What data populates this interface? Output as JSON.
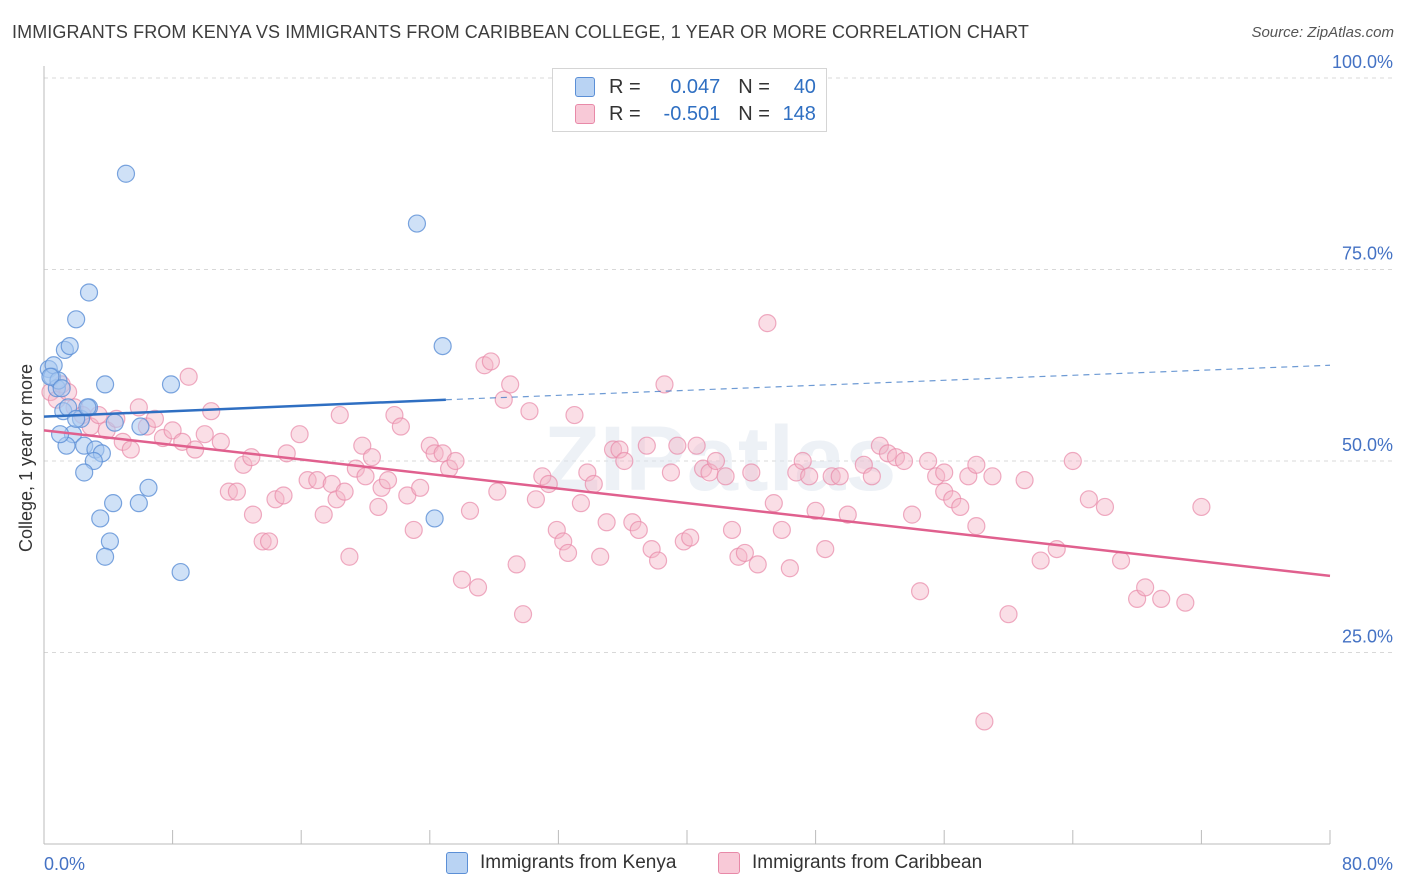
{
  "title": "IMMIGRANTS FROM KENYA VS IMMIGRANTS FROM CARIBBEAN COLLEGE, 1 YEAR OR MORE CORRELATION CHART",
  "source": "Source: ZipAtlas.com",
  "watermark": "ZIPatlas",
  "legend": {
    "kenya": {
      "r_label": "R =",
      "r_value": "0.047",
      "n_label": "N =",
      "n_value": "40"
    },
    "caribbean": {
      "r_label": "R =",
      "r_value": "-0.501",
      "n_label": "N =",
      "n_value": "148"
    }
  },
  "bottom_legend": {
    "kenya": "Immigrants from Kenya",
    "caribbean": "Immigrants from Caribbean"
  },
  "colors": {
    "kenya_fill": "#a8c8f0",
    "kenya_stroke": "#5b8fd6",
    "kenya_line": "#2f6fc2",
    "caribbean_fill": "#f4b6c8",
    "caribbean_stroke": "#e889a8",
    "caribbean_line": "#e0608e"
  },
  "chart_data": {
    "type": "scatter",
    "title": "IMMIGRANTS FROM KENYA VS IMMIGRANTS FROM CARIBBEAN COLLEGE, 1 YEAR OR MORE CORRELATION CHART",
    "xlabel": "",
    "ylabel": "College, 1 year or more",
    "xlim": [
      0,
      80
    ],
    "ylim": [
      0,
      105
    ],
    "x_tick_labels": [
      "0.0%",
      "80.0%"
    ],
    "y_ticks": [
      25,
      50,
      75,
      100
    ],
    "y_tick_labels": [
      "25.0%",
      "50.0%",
      "75.0%",
      "100.0%"
    ],
    "grid": true,
    "series": [
      {
        "name": "Immigrants from Kenya",
        "r": 0.047,
        "n": 40,
        "trend": {
          "x0": 0,
          "y0": 55.8,
          "x1": 25,
          "y1": 58.0,
          "dash_to_x": 80,
          "dash_to_y": 62.5
        },
        "points": [
          [
            0.3,
            62
          ],
          [
            0.5,
            61
          ],
          [
            0.8,
            59.5
          ],
          [
            0.6,
            62.5
          ],
          [
            0.9,
            60.5
          ],
          [
            1.3,
            64.5
          ],
          [
            1.6,
            65
          ],
          [
            2.0,
            68.5
          ],
          [
            2.8,
            72
          ],
          [
            5.1,
            87.5
          ],
          [
            1.2,
            56.5
          ],
          [
            1.5,
            57
          ],
          [
            2.3,
            55.5
          ],
          [
            2.8,
            57
          ],
          [
            1.8,
            53.5
          ],
          [
            1.4,
            52
          ],
          [
            2.5,
            52
          ],
          [
            3.2,
            51.5
          ],
          [
            3.6,
            51
          ],
          [
            3.1,
            50
          ],
          [
            2.5,
            48.5
          ],
          [
            4.4,
            55
          ],
          [
            3.8,
            60
          ],
          [
            6.5,
            46.5
          ],
          [
            4.3,
            44.5
          ],
          [
            5.9,
            44.5
          ],
          [
            3.5,
            42.5
          ],
          [
            4.1,
            39.5
          ],
          [
            3.8,
            37.5
          ],
          [
            8.5,
            35.5
          ],
          [
            7.9,
            60
          ],
          [
            23.2,
            81
          ],
          [
            24.8,
            65
          ],
          [
            24.3,
            42.5
          ],
          [
            0.4,
            61
          ],
          [
            1.1,
            59.5
          ],
          [
            2.0,
            55.5
          ],
          [
            2.7,
            57
          ],
          [
            1.0,
            53.5
          ],
          [
            6.0,
            54.5
          ]
        ]
      },
      {
        "name": "Immigrants from Caribbean",
        "r": -0.501,
        "n": 148,
        "trend": {
          "x0": 0,
          "y0": 54.0,
          "x1": 80,
          "y1": 35.0
        },
        "points": [
          [
            0.4,
            59
          ],
          [
            0.8,
            58
          ],
          [
            1.1,
            60
          ],
          [
            1.5,
            59
          ],
          [
            1.9,
            57
          ],
          [
            2.4,
            56
          ],
          [
            2.9,
            54.5
          ],
          [
            3.4,
            56
          ],
          [
            3.9,
            54
          ],
          [
            4.5,
            55.5
          ],
          [
            4.9,
            52.5
          ],
          [
            5.4,
            51.5
          ],
          [
            5.9,
            57
          ],
          [
            6.4,
            54.5
          ],
          [
            6.9,
            55.5
          ],
          [
            7.4,
            53
          ],
          [
            8.0,
            54
          ],
          [
            8.6,
            52.5
          ],
          [
            9.0,
            61
          ],
          [
            9.4,
            51.5
          ],
          [
            10.0,
            53.5
          ],
          [
            10.4,
            56.5
          ],
          [
            11.0,
            52.5
          ],
          [
            11.5,
            46
          ],
          [
            12.0,
            46
          ],
          [
            12.4,
            49.5
          ],
          [
            12.9,
            50.5
          ],
          [
            13.0,
            43
          ],
          [
            13.6,
            39.5
          ],
          [
            14.0,
            39.5
          ],
          [
            14.4,
            45
          ],
          [
            14.9,
            45.5
          ],
          [
            15.1,
            51
          ],
          [
            15.9,
            53.5
          ],
          [
            16.4,
            47.5
          ],
          [
            17.0,
            47.5
          ],
          [
            17.4,
            43
          ],
          [
            17.9,
            47
          ],
          [
            18.2,
            45
          ],
          [
            18.4,
            56
          ],
          [
            18.7,
            46
          ],
          [
            19.0,
            37.5
          ],
          [
            19.4,
            49
          ],
          [
            19.8,
            52
          ],
          [
            20.0,
            48
          ],
          [
            20.4,
            50.5
          ],
          [
            20.8,
            44
          ],
          [
            21.0,
            46.5
          ],
          [
            21.4,
            47.5
          ],
          [
            21.8,
            56
          ],
          [
            22.2,
            54.5
          ],
          [
            22.6,
            45.5
          ],
          [
            23.0,
            41
          ],
          [
            23.4,
            46.5
          ],
          [
            24.0,
            52
          ],
          [
            24.3,
            51
          ],
          [
            24.8,
            51
          ],
          [
            25.2,
            49
          ],
          [
            25.6,
            50
          ],
          [
            26.0,
            34.5
          ],
          [
            26.5,
            43.5
          ],
          [
            27.0,
            33.5
          ],
          [
            27.4,
            62.5
          ],
          [
            27.8,
            63
          ],
          [
            28.2,
            46
          ],
          [
            28.6,
            58
          ],
          [
            29.0,
            60
          ],
          [
            29.4,
            36.5
          ],
          [
            29.8,
            30
          ],
          [
            30.2,
            56.5
          ],
          [
            30.6,
            45
          ],
          [
            31.0,
            48
          ],
          [
            31.4,
            47
          ],
          [
            31.9,
            41
          ],
          [
            32.3,
            39.5
          ],
          [
            32.6,
            38
          ],
          [
            33.0,
            56
          ],
          [
            33.4,
            44.5
          ],
          [
            33.8,
            48.5
          ],
          [
            34.2,
            47
          ],
          [
            34.6,
            37.5
          ],
          [
            35.0,
            42
          ],
          [
            35.4,
            51.5
          ],
          [
            35.8,
            51.5
          ],
          [
            36.1,
            50
          ],
          [
            36.6,
            42
          ],
          [
            37.0,
            41
          ],
          [
            37.5,
            52
          ],
          [
            37.8,
            38.5
          ],
          [
            38.2,
            37
          ],
          [
            38.6,
            60
          ],
          [
            39.0,
            48.5
          ],
          [
            39.4,
            52
          ],
          [
            39.8,
            39.5
          ],
          [
            40.2,
            40
          ],
          [
            40.6,
            52
          ],
          [
            41.0,
            49
          ],
          [
            41.4,
            48.5
          ],
          [
            41.8,
            50
          ],
          [
            42.4,
            48
          ],
          [
            42.8,
            41
          ],
          [
            43.2,
            37.5
          ],
          [
            43.6,
            38
          ],
          [
            44.0,
            48.5
          ],
          [
            44.4,
            36.5
          ],
          [
            45.0,
            68
          ],
          [
            45.4,
            44.5
          ],
          [
            45.9,
            41
          ],
          [
            46.4,
            36
          ],
          [
            46.8,
            48.5
          ],
          [
            47.2,
            50
          ],
          [
            47.6,
            48
          ],
          [
            48.0,
            43.5
          ],
          [
            48.6,
            38.5
          ],
          [
            49.0,
            48
          ],
          [
            49.5,
            48
          ],
          [
            50.0,
            43
          ],
          [
            51.0,
            49.5
          ],
          [
            51.5,
            48
          ],
          [
            52.0,
            52
          ],
          [
            52.5,
            51
          ],
          [
            53.0,
            50.5
          ],
          [
            53.5,
            50
          ],
          [
            54.0,
            43
          ],
          [
            54.5,
            33
          ],
          [
            55.0,
            50
          ],
          [
            55.5,
            48
          ],
          [
            56.0,
            46
          ],
          [
            56.5,
            45
          ],
          [
            57.0,
            44
          ],
          [
            57.5,
            48
          ],
          [
            58.0,
            41.5
          ],
          [
            58.5,
            16
          ],
          [
            59.0,
            48
          ],
          [
            60.0,
            30
          ],
          [
            61.0,
            47.5
          ],
          [
            62.0,
            37
          ],
          [
            63.0,
            38.5
          ],
          [
            64.0,
            50
          ],
          [
            65.0,
            45
          ],
          [
            66.0,
            44
          ],
          [
            67.0,
            37
          ],
          [
            68.0,
            32
          ],
          [
            68.5,
            33.5
          ],
          [
            69.5,
            32
          ],
          [
            71.0,
            31.5
          ],
          [
            72.0,
            44
          ],
          [
            58.0,
            49.5
          ],
          [
            56.0,
            48.5
          ]
        ]
      }
    ]
  }
}
